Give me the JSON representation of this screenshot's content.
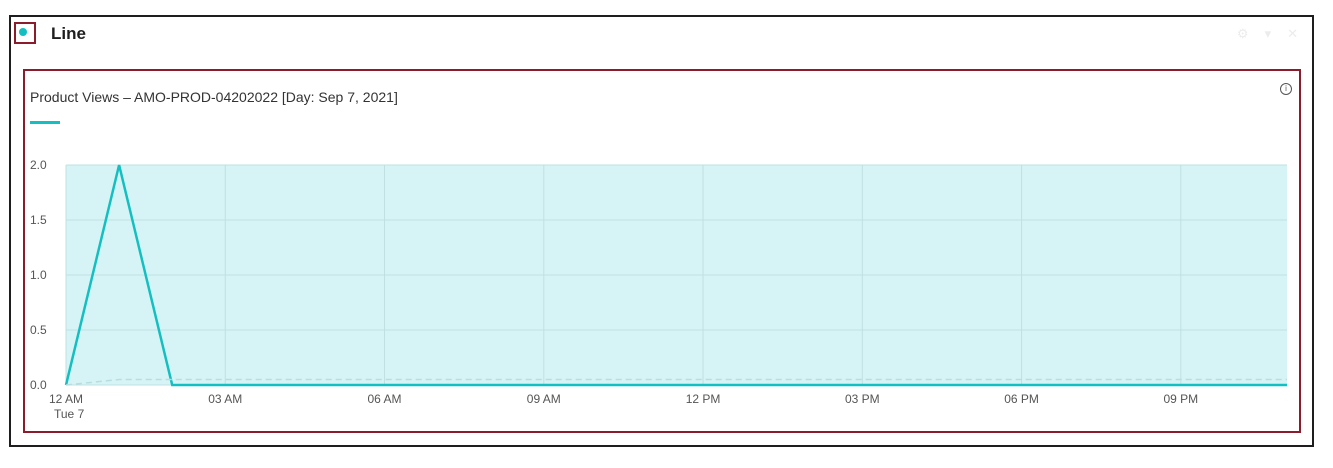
{
  "panel": {
    "title": "Line",
    "accent_color": "#14bfc2",
    "highlight_color": "#8a1c2b",
    "controls": [
      "gear-icon",
      "chevron-down-icon",
      "close-icon"
    ]
  },
  "chart": {
    "title": "Product Views – AMO-PROD-04202022 [Day: Sep 7, 2021]",
    "info_icon": "info-icon"
  },
  "chart_data": {
    "type": "area",
    "title": "Product Views – AMO-PROD-04202022 [Day: Sep 7, 2021]",
    "xlabel": "",
    "ylabel": "",
    "x": [
      "00:00",
      "01:00",
      "02:00",
      "03:00",
      "04:00",
      "05:00",
      "06:00",
      "07:00",
      "08:00",
      "09:00",
      "10:00",
      "11:00",
      "12:00",
      "13:00",
      "14:00",
      "15:00",
      "16:00",
      "17:00",
      "18:00",
      "19:00",
      "20:00",
      "21:00",
      "22:00",
      "23:00"
    ],
    "series": [
      {
        "values": [
          0,
          2,
          0,
          0,
          0,
          0,
          0,
          0,
          0,
          0,
          0,
          0,
          0,
          0,
          0,
          0,
          0,
          0,
          0,
          0,
          0,
          0,
          0,
          0
        ],
        "color": "#14bfc2"
      },
      {
        "values": [
          0,
          0.05,
          0.05,
          0.05,
          0.05,
          0.05,
          0.05,
          0.05,
          0.05,
          0.05,
          0.05,
          0.05,
          0.05,
          0.05,
          0.05,
          0.05,
          0.05,
          0.05,
          0.05,
          0.05,
          0.05,
          0.05,
          0.05,
          0.05
        ],
        "color": "#b6dde0",
        "style": "dashed"
      }
    ],
    "ylim": [
      0,
      2
    ],
    "xlim_hours": [
      0,
      23
    ],
    "yticks": [
      0.0,
      0.5,
      1.0,
      1.5,
      2.0
    ],
    "ytick_labels": [
      "0.0",
      "0.5",
      "1.0",
      "1.5",
      "2.0"
    ],
    "xticks_hours": [
      0,
      3,
      6,
      9,
      12,
      15,
      18,
      21
    ],
    "xtick_labels": [
      "12 AM",
      "03 AM",
      "06 AM",
      "09 AM",
      "12 PM",
      "03 PM",
      "06 PM",
      "09 PM"
    ],
    "xtick_sublabel": "Tue 7",
    "fill_color": "#d6f4f5",
    "grid": true
  }
}
